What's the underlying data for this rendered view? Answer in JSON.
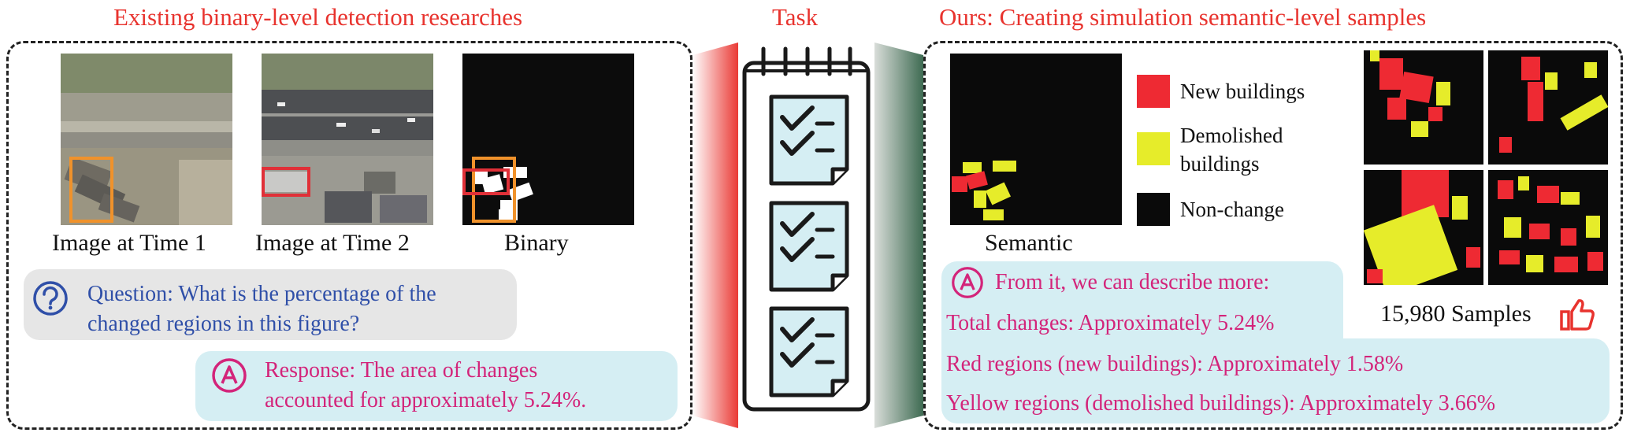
{
  "left": {
    "header": "Existing binary-level detection researches",
    "captions": [
      "Image at Time 1",
      "Image at Time 2",
      "Binary"
    ],
    "question": {
      "line1": "Question: What is the percentage of the",
      "line2": "changed regions in this figure?"
    },
    "response": {
      "line1": "Response: The area of changes",
      "line2": "accounted for approximately 5.24%."
    }
  },
  "middle": {
    "header": "Task"
  },
  "right": {
    "header": "Ours: Creating simulation semantic-level samples",
    "semantic_caption": "Semantic",
    "legend": [
      {
        "label": "New buildings",
        "color": "#ee2a33"
      },
      {
        "label_line1": "Demolished",
        "label_line2": "buildings",
        "color": "#e6ec2a"
      },
      {
        "label": "Non-change",
        "color": "#0a0a0a"
      }
    ],
    "samples_caption": "15,980 Samples",
    "describe": {
      "intro": "From it, we can describe more:",
      "total": "Total changes: Approximately 5.24%",
      "red": "Red regions (new buildings): Approximately 1.58%",
      "yellow": "Yellow regions (demolished buildings): Approximately 3.66%"
    }
  },
  "colors": {
    "header_red": "#e8332e",
    "pink_text": "#d3247a",
    "blue_text": "#2f4fa8",
    "bubble_gray": "#e6e6e6",
    "bubble_blue": "#d5eef3"
  },
  "icons": [
    "question-icon",
    "answer-icon",
    "checklist-icon",
    "thumbs-up-icon"
  ]
}
